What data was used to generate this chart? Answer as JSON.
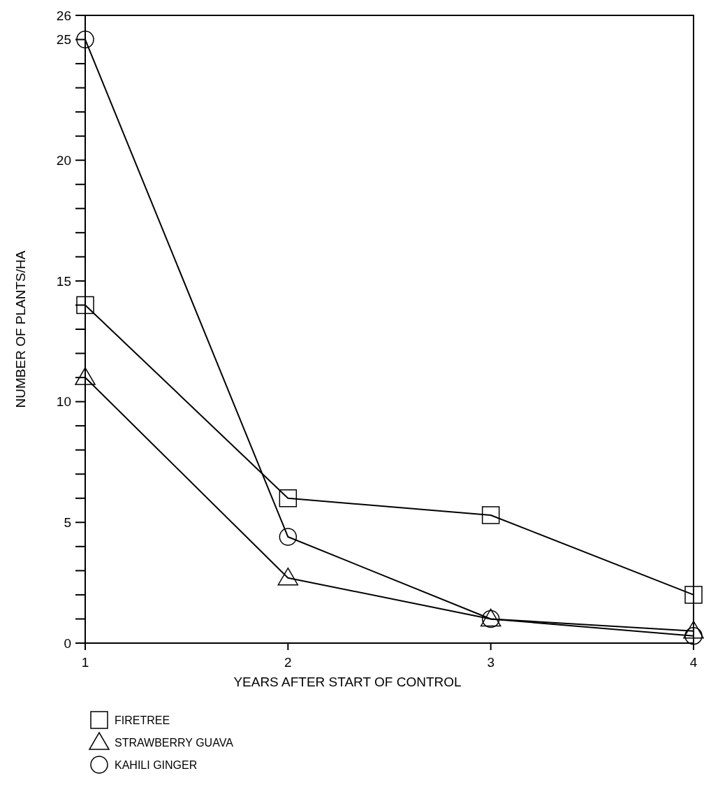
{
  "chart_data": {
    "type": "line",
    "xlabel": "YEARS AFTER START OF CONTROL",
    "ylabel": "NUMBER OF PLANTS/HA",
    "x": [
      1,
      2,
      3,
      4
    ],
    "xlim": [
      1,
      4
    ],
    "xticks": [
      1,
      2,
      3,
      4
    ],
    "ylim": [
      0,
      26
    ],
    "yticks": [
      0,
      {
        "value": 1,
        "label": null
      },
      {
        "value": 2,
        "label": null
      },
      {
        "value": 3,
        "label": null
      },
      {
        "value": 4,
        "label": null
      },
      5,
      {
        "value": 6,
        "label": null
      },
      {
        "value": 7,
        "label": null
      },
      {
        "value": 8,
        "label": null
      },
      {
        "value": 9,
        "label": null
      },
      10,
      {
        "value": 11,
        "label": null
      },
      {
        "value": 12,
        "label": null
      },
      {
        "value": 13,
        "label": null
      },
      {
        "value": 14,
        "label": null
      },
      15,
      {
        "value": 16,
        "label": null
      },
      {
        "value": 17,
        "label": null
      },
      {
        "value": 18,
        "label": null
      },
      {
        "value": 19,
        "label": null
      },
      20,
      {
        "value": 21,
        "label": null
      },
      {
        "value": 22,
        "label": null
      },
      {
        "value": 23,
        "label": null
      },
      {
        "value": 24,
        "label": null
      },
      25,
      26
    ],
    "grid": false,
    "legend": "bottom left",
    "line_style": "solid",
    "series": [
      {
        "name": "FIRETREE",
        "color": "#000000",
        "marker": "square",
        "values": [
          14,
          6,
          5.3,
          2
        ]
      },
      {
        "name": "STRAWBERRY GUAVA",
        "color": "#000000",
        "marker": "triangle",
        "values": [
          11,
          2.7,
          1,
          0.5
        ]
      },
      {
        "name": "KAHILI GINGER",
        "color": "#000000",
        "marker": "circle",
        "values": [
          25,
          4.4,
          1,
          0.3
        ]
      }
    ]
  }
}
